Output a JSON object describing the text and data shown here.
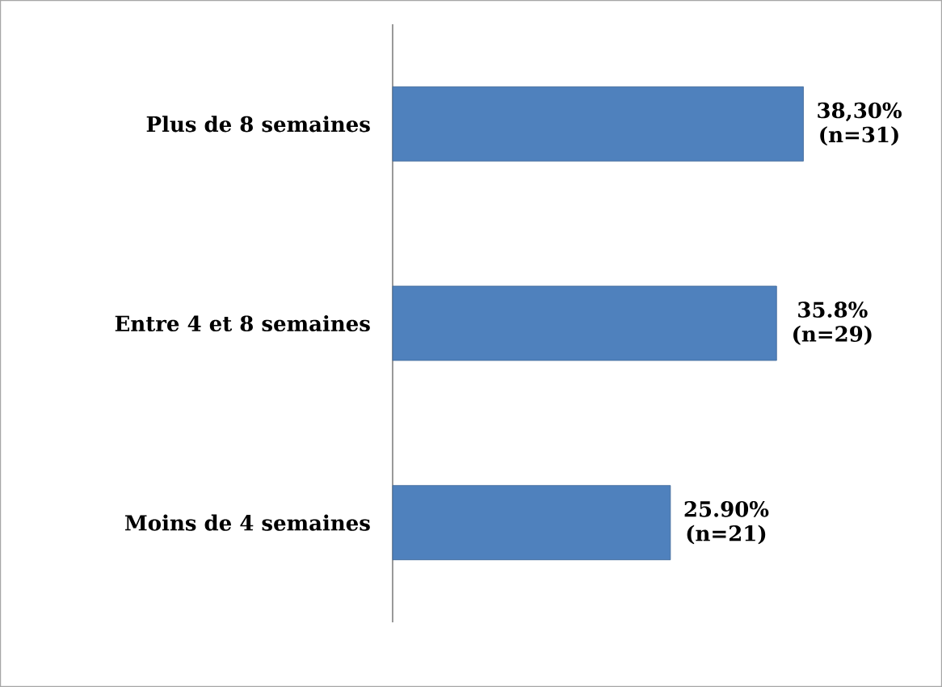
{
  "chart_data": {
    "type": "bar",
    "orientation": "horizontal",
    "categories": [
      "Plus de 8 semaines",
      "Entre 4 et 8 semaines",
      "Moins de 4 semaines"
    ],
    "values": [
      38.3,
      35.8,
      25.9
    ],
    "value_labels": [
      "38,30% (n=31)",
      "35.8% (n=29)",
      "25.90% (n=21)"
    ],
    "color": "#4f81bd"
  }
}
